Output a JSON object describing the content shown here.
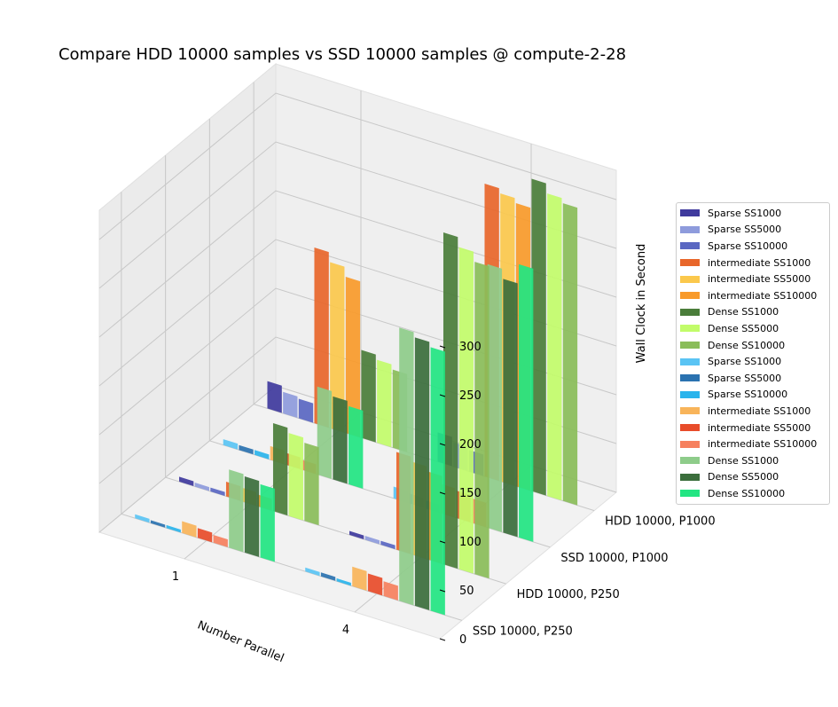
{
  "chart_data": {
    "type": "bar3d",
    "title": "Compare HDD 10000 samples vs SSD 10000 samples @ compute-2-28",
    "xlabel": "Number Parallel",
    "ylabel": "",
    "zlabel": "Wall Clock in Second",
    "x_ticks": [
      "1",
      "4"
    ],
    "y_ticks": [
      "HDD 10000, P1000",
      "SSD 10000, P1000",
      "HDD 10000, P250",
      "SSD 10000, P250"
    ],
    "z_ticks": [
      0,
      50,
      100,
      150,
      200,
      250,
      300
    ],
    "zlim": [
      0,
      330
    ],
    "series": [
      {
        "name": "Sparse SS1000",
        "color": "#3f3a9d",
        "group": "HDD",
        "values": [
          [
            5,
            4
          ],
          [
            28,
            30
          ]
        ]
      },
      {
        "name": "Sparse SS5000",
        "color": "#8e9bdc",
        "group": "HDD",
        "values": [
          [
            4,
            4
          ],
          [
            22,
            25
          ]
        ]
      },
      {
        "name": "Sparse SS10000",
        "color": "#5a67c2",
        "group": "HDD",
        "values": [
          [
            4,
            4
          ],
          [
            20,
            22
          ]
        ]
      },
      {
        "name": "intermediate SS1000",
        "color": "#e8662a",
        "group": "HDD",
        "values": [
          [
            15,
            100
          ],
          [
            180,
            300
          ]
        ]
      },
      {
        "name": "intermediate SS5000",
        "color": "#fbc84c",
        "group": "HDD",
        "values": [
          [
            14,
            95
          ],
          [
            170,
            295
          ]
        ]
      },
      {
        "name": "intermediate SS10000",
        "color": "#f89a2a",
        "group": "HDD",
        "values": [
          [
            12,
            90
          ],
          [
            160,
            290
          ]
        ]
      },
      {
        "name": "Dense SS1000",
        "color": "#4a7d3a",
        "group": "HDD",
        "values": [
          [
            90,
            340
          ],
          [
            90,
            320
          ]
        ]
      },
      {
        "name": "Dense SS5000",
        "color": "#c2fc6a",
        "group": "HDD",
        "values": [
          [
            85,
            330
          ],
          [
            85,
            310
          ]
        ]
      },
      {
        "name": "Dense SS10000",
        "color": "#8abd59",
        "group": "HDD",
        "values": [
          [
            80,
            320
          ],
          [
            80,
            305
          ]
        ]
      },
      {
        "name": "Sparse SS1000",
        "color": "#5ac4f4",
        "group": "SSD",
        "values": [
          [
            4,
            4
          ],
          [
            6,
            12
          ]
        ]
      },
      {
        "name": "Sparse SS5000",
        "color": "#2a72b0",
        "group": "SSD",
        "values": [
          [
            3,
            4
          ],
          [
            5,
            10
          ]
        ]
      },
      {
        "name": "Sparse SS10000",
        "color": "#2ab4ec",
        "group": "SSD",
        "values": [
          [
            3,
            3
          ],
          [
            5,
            8
          ]
        ]
      },
      {
        "name": "intermediate SS1000",
        "color": "#f8b45a",
        "group": "SSD",
        "values": [
          [
            12,
            20
          ],
          [
            14,
            30
          ]
        ]
      },
      {
        "name": "intermediate SS5000",
        "color": "#e84c2a",
        "group": "SSD",
        "values": [
          [
            10,
            18
          ],
          [
            12,
            28
          ]
        ]
      },
      {
        "name": "intermediate SS10000",
        "color": "#f6805e",
        "group": "SSD",
        "values": [
          [
            8,
            15
          ],
          [
            10,
            25
          ]
        ]
      },
      {
        "name": "Dense SS1000",
        "color": "#8ecc8a",
        "group": "SSD",
        "values": [
          [
            80,
            280
          ],
          [
            90,
            270
          ]
        ]
      },
      {
        "name": "Dense SS5000",
        "color": "#3b6e3c",
        "group": "SSD",
        "values": [
          [
            78,
            275
          ],
          [
            85,
            260
          ]
        ]
      },
      {
        "name": "Dense SS10000",
        "color": "#22e582",
        "group": "SSD",
        "values": [
          [
            75,
            270
          ],
          [
            80,
            280
          ]
        ]
      }
    ],
    "grid": true,
    "legend_position": "right"
  }
}
